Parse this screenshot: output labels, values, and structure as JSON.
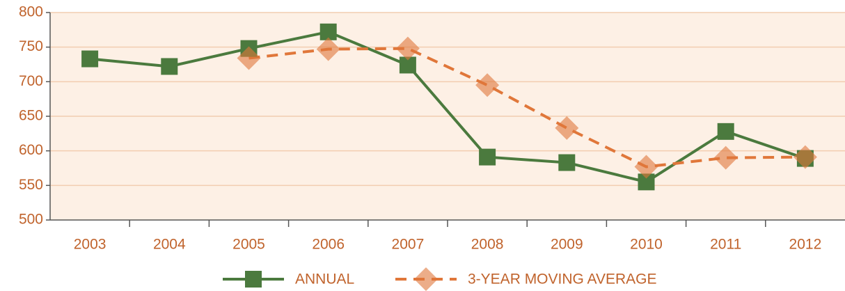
{
  "chart_data": {
    "type": "line",
    "categories": [
      "2003",
      "2004",
      "2005",
      "2006",
      "2007",
      "2008",
      "2009",
      "2010",
      "2011",
      "2012"
    ],
    "series": [
      {
        "name": "ANNUAL",
        "color": "#4b7a3e",
        "marker": "square",
        "values": [
          733,
          722,
          748,
          772,
          724,
          591,
          583,
          555,
          628,
          589
        ]
      },
      {
        "name": "3-YEAR MOVING AVERAGE",
        "color": "#e0773a",
        "marker": "diamond",
        "dashed": true,
        "values": [
          null,
          null,
          734,
          747,
          748,
          695,
          633,
          577,
          590,
          591
        ]
      }
    ],
    "ylim": [
      500,
      800
    ],
    "yticks": [
      500,
      550,
      600,
      650,
      700,
      750,
      800
    ],
    "grid": true,
    "legend": "bottom"
  }
}
